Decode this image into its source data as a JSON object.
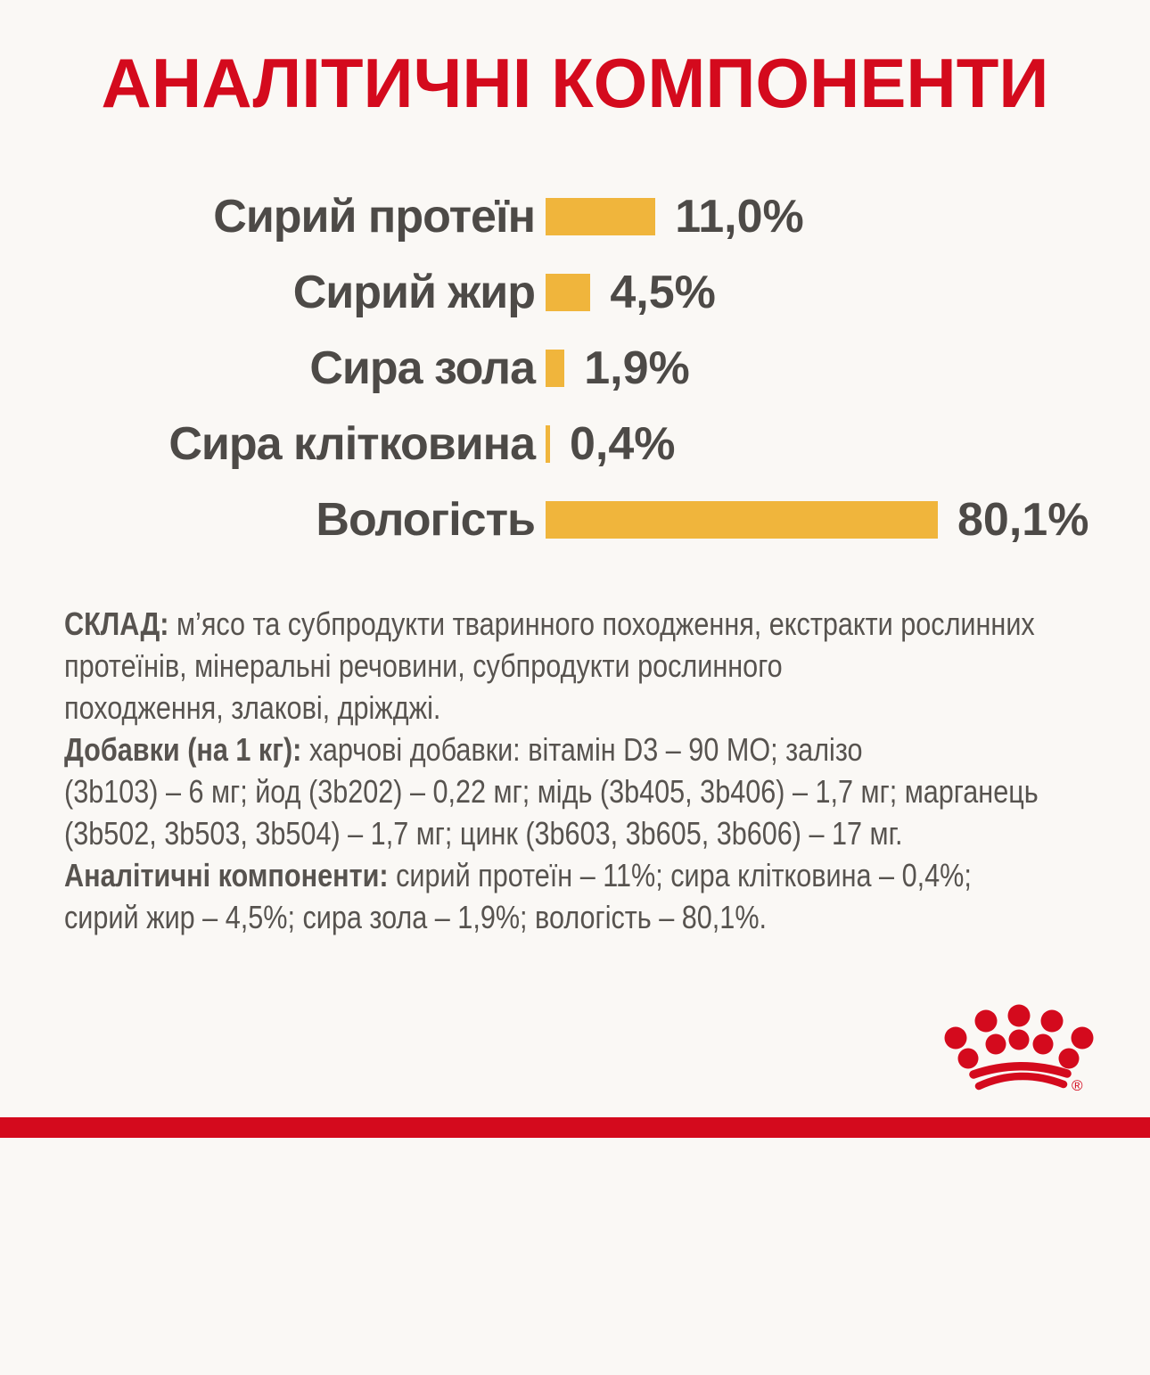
{
  "colors": {
    "background": "#FAF8F5",
    "brand_red": "#D40A1D",
    "bar_yellow": "#F0B53C",
    "heading_text": "#4D4A47",
    "body_text": "#57534F"
  },
  "title": "АНАЛІТИЧНІ КОМПОНЕНТИ",
  "chart_data": {
    "type": "bar",
    "orientation": "horizontal",
    "title": "АНАЛІТИЧНІ КОМПОНЕНТИ",
    "categories": [
      "Сирий протеїн",
      "Сирий жир",
      "Сира зола",
      "Сира клітковина",
      "Вологість"
    ],
    "values": [
      11.0,
      4.5,
      1.9,
      0.4,
      80.1
    ],
    "value_labels": [
      "11,0%",
      "4,5%",
      "1,9%",
      "0,4%",
      "80,1%"
    ],
    "unit": "%",
    "bar_color": "#F0B53C",
    "legend": "none",
    "grid": false
  },
  "composition": {
    "label": "СКЛАД:",
    "text": "м’ясо та субпродукти тваринного походження, екстракти рослинних\nпротеїнів, мінеральні речовини, субпродукти рослинного\nпоходження, злакові, дріжджі."
  },
  "additives": {
    "label": "Добавки (на 1 кг):",
    "text": "харчові добавки: вітамін D3 – 90 МО; залізо\n(3b103) – 6 мг; йод (3b202) – 0,22 мг; мідь (3b405, 3b406) – 1,7 мг; марганець\n(3b502, 3b503, 3b504) – 1,7 мг; цинк (3b603, 3b605, 3b606) – 17 мг."
  },
  "analytical": {
    "label": "Аналітичні компоненти:",
    "text": "сирий протеїн – 11%; сира клітковина – 0,4%;\nсирий жир – 4,5%; сира зола – 1,9%; вологість – 80,1%."
  },
  "footer": {
    "registered_mark": "®"
  }
}
